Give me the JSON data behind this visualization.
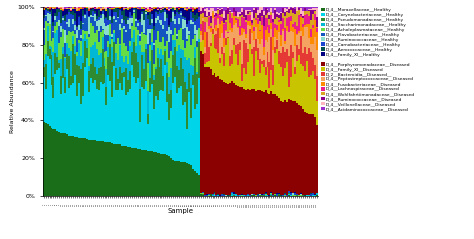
{
  "healthy_families": [
    "D_4__Moraxellaceae__Healthy",
    "D_4__Corynebacteriaceae__Healthy",
    "D_4__Pseudomonadaceae__Healthy",
    "D_4__Saccharimonadaceae__Healthy",
    "D_4__Acholeplasmataceae__Healthy",
    "D_4__Flavobacteriaceae__Healthy",
    "D_4__Ruminococcaceae__Healthy",
    "D_4__Carnobacteriaceae__Healthy",
    "D_4__Aerococcaceae__Healthy",
    "D_4__Family_XI__Healthy"
  ],
  "diseased_families": [
    "D_4__Porphyromonadaceae__Diseased",
    "D_4__Family_XI__Diseased",
    "D_2__Bacteroidia__Diseased__",
    "D_4__Peptostreptococcaceae__Diseased",
    "D_4__Fusobacteriaceae__Diseased",
    "D_4__Lachnospiraceae__Diseased",
    "D_4__Wohlfahrtiimonadaceae__Diseased",
    "D_4__Ruminococcaceae__Diseased",
    "D_4__Veillonellaceae__Diseased",
    "D_4__Acidaminococcaceae__Diseased"
  ],
  "healthy_colors": [
    "#1a6e1a",
    "#00d4e8",
    "#2e8b32",
    "#00b8d4",
    "#66dd44",
    "#1255c0",
    "#88ddcc",
    "#1a44d0",
    "#005050",
    "#000080"
  ],
  "diseased_colors": [
    "#8b0000",
    "#c8c400",
    "#e53935",
    "#f4a460",
    "#ff8c00",
    "#e91e8c",
    "#daa520",
    "#8b008b",
    "#ffb6c1",
    "#9932cc"
  ],
  "n_healthy": 80,
  "n_diseased": 60,
  "ylabel": "Relative Abundance",
  "xlabel": "Sample",
  "ylim": [
    0,
    1
  ],
  "background_color": "#ffffff"
}
